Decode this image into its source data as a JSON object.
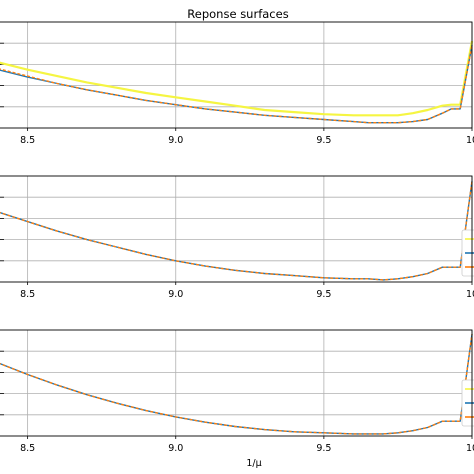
{
  "title": "Reponse surfaces",
  "chart_data": [
    {
      "type": "line",
      "title": "Reponse surfaces",
      "xlabel": "",
      "xlim": [
        8.4,
        10.0
      ],
      "ylim": [
        0,
        1
      ],
      "x_ticks": [
        "8.5",
        "9.0",
        "9.5",
        "10"
      ],
      "grid": true,
      "series": [
        {
          "color": "#f5f542",
          "x": [
            8.4,
            8.5,
            8.6,
            8.7,
            8.8,
            8.9,
            9.0,
            9.1,
            9.2,
            9.3,
            9.4,
            9.5,
            9.6,
            9.65,
            9.7,
            9.75,
            9.8,
            9.85,
            9.9,
            9.93,
            9.96,
            10.0
          ],
          "y": [
            0.62,
            0.55,
            0.49,
            0.43,
            0.38,
            0.33,
            0.29,
            0.25,
            0.21,
            0.17,
            0.15,
            0.13,
            0.12,
            0.12,
            0.12,
            0.12,
            0.14,
            0.17,
            0.21,
            0.22,
            0.22,
            0.82
          ]
        },
        {
          "color": "#1f77b4",
          "x": [
            8.4,
            8.5,
            8.6,
            8.7,
            8.8,
            8.9,
            9.0,
            9.1,
            9.2,
            9.3,
            9.4,
            9.5,
            9.6,
            9.65,
            9.7,
            9.75,
            9.8,
            9.85,
            9.9,
            9.93,
            9.96,
            10.0
          ],
          "y": [
            0.55,
            0.48,
            0.42,
            0.36,
            0.31,
            0.26,
            0.22,
            0.18,
            0.15,
            0.12,
            0.1,
            0.08,
            0.06,
            0.05,
            0.05,
            0.05,
            0.06,
            0.08,
            0.14,
            0.18,
            0.18,
            0.78
          ]
        },
        {
          "color": "#ff7f0e",
          "x": [
            8.4,
            8.5,
            8.6,
            8.7,
            8.8,
            8.9,
            9.0,
            9.1,
            9.2,
            9.3,
            9.4,
            9.5,
            9.6,
            9.65,
            9.7,
            9.75,
            9.8,
            9.85,
            9.9,
            9.93,
            9.96,
            10.0
          ],
          "y": [
            0.56,
            0.49,
            0.42,
            0.36,
            0.31,
            0.26,
            0.22,
            0.18,
            0.15,
            0.12,
            0.1,
            0.08,
            0.06,
            0.05,
            0.05,
            0.05,
            0.06,
            0.08,
            0.14,
            0.18,
            0.18,
            0.78
          ]
        }
      ]
    },
    {
      "type": "line",
      "xlabel": "",
      "xlim": [
        8.4,
        10.0
      ],
      "ylim": [
        0,
        1
      ],
      "x_ticks": [
        "8.5",
        "9.0",
        "9.5",
        "10"
      ],
      "grid": true,
      "legend_position": "right",
      "series": [
        {
          "color": "#1f77b4",
          "x": [
            8.4,
            8.5,
            8.6,
            8.7,
            8.8,
            8.9,
            9.0,
            9.1,
            9.2,
            9.3,
            9.4,
            9.5,
            9.6,
            9.65,
            9.7,
            9.75,
            9.8,
            9.85,
            9.9,
            9.93,
            9.96,
            10.0
          ],
          "y": [
            0.66,
            0.57,
            0.48,
            0.4,
            0.33,
            0.26,
            0.2,
            0.15,
            0.11,
            0.08,
            0.06,
            0.04,
            0.03,
            0.03,
            0.02,
            0.03,
            0.05,
            0.08,
            0.14,
            0.14,
            0.14,
            0.95
          ]
        },
        {
          "color": "#ff7f0e",
          "x": [
            8.4,
            8.5,
            8.6,
            8.7,
            8.8,
            8.9,
            9.0,
            9.1,
            9.2,
            9.3,
            9.4,
            9.5,
            9.6,
            9.65,
            9.7,
            9.75,
            9.8,
            9.85,
            9.9,
            9.93,
            9.96,
            10.0
          ],
          "y": [
            0.66,
            0.57,
            0.48,
            0.4,
            0.33,
            0.26,
            0.2,
            0.15,
            0.11,
            0.08,
            0.06,
            0.04,
            0.03,
            0.03,
            0.02,
            0.03,
            0.05,
            0.08,
            0.14,
            0.14,
            0.14,
            0.95
          ]
        }
      ]
    },
    {
      "type": "line",
      "xlabel": "1/μ",
      "xlim": [
        8.4,
        10.0
      ],
      "ylim": [
        0,
        1
      ],
      "x_ticks": [
        "8.5",
        "9.0",
        "9.5",
        "10"
      ],
      "grid": true,
      "legend_position": "right",
      "series": [
        {
          "color": "#1f77b4",
          "x": [
            8.4,
            8.5,
            8.6,
            8.7,
            8.8,
            8.9,
            9.0,
            9.1,
            9.2,
            9.3,
            9.4,
            9.5,
            9.6,
            9.65,
            9.7,
            9.75,
            9.8,
            9.85,
            9.9,
            9.93,
            9.96,
            10.0
          ],
          "y": [
            0.69,
            0.58,
            0.48,
            0.39,
            0.31,
            0.24,
            0.18,
            0.13,
            0.09,
            0.06,
            0.04,
            0.03,
            0.02,
            0.02,
            0.02,
            0.03,
            0.05,
            0.08,
            0.14,
            0.14,
            0.14,
            0.96
          ]
        },
        {
          "color": "#ff7f0e",
          "x": [
            8.4,
            8.5,
            8.6,
            8.7,
            8.8,
            8.9,
            9.0,
            9.1,
            9.2,
            9.3,
            9.4,
            9.5,
            9.6,
            9.65,
            9.7,
            9.75,
            9.8,
            9.85,
            9.9,
            9.93,
            9.96,
            10.0
          ],
          "y": [
            0.69,
            0.58,
            0.48,
            0.39,
            0.31,
            0.24,
            0.18,
            0.13,
            0.09,
            0.06,
            0.04,
            0.03,
            0.02,
            0.02,
            0.02,
            0.03,
            0.05,
            0.08,
            0.14,
            0.14,
            0.14,
            0.96
          ]
        }
      ]
    }
  ]
}
